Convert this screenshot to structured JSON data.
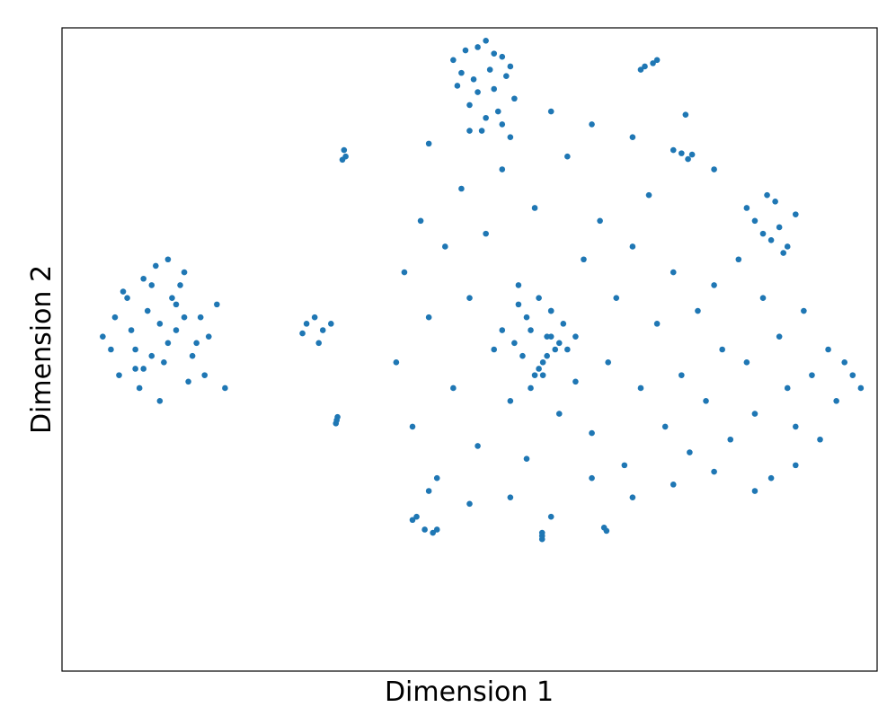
{
  "chart_data": {
    "type": "scatter",
    "x_label": "Dimension 1",
    "y_label": "Dimension 2",
    "color": "#1f77b4",
    "xlim": [
      0,
      100
    ],
    "ylim": [
      0,
      100
    ],
    "x": [
      5,
      6.5,
      8,
      9,
      10,
      11,
      12,
      13,
      14,
      15,
      16,
      17,
      18,
      7,
      9.5,
      11.5,
      13.5,
      15.5,
      8.5,
      10.5,
      12.5,
      14.5,
      16.5,
      6,
      19,
      20,
      12,
      13,
      10,
      14,
      17.5,
      7.5,
      11,
      15,
      9,
      48,
      49.5,
      51,
      52,
      53,
      54,
      55,
      49,
      50.5,
      52.5,
      54.5,
      51,
      53,
      50,
      55.5,
      52,
      48.5,
      54,
      51.5,
      53.5,
      30,
      31,
      32,
      31.5,
      33,
      29.5,
      34.6,
      34.8,
      34.4,
      76,
      76.8,
      77.3,
      76.5,
      71,
      71.5,
      72.5,
      73,
      43.5,
      44.5,
      45.5,
      46,
      43,
      58.9,
      58.9,
      58.9,
      66.5,
      66.8,
      33.8,
      33.6,
      33.7,
      41,
      42,
      43,
      44,
      45,
      46,
      47,
      48,
      49,
      50,
      51,
      52,
      53,
      54,
      55,
      56,
      57,
      58,
      59,
      60,
      61,
      62,
      63,
      64,
      65,
      66,
      67,
      68,
      69,
      70,
      71,
      72,
      73,
      74,
      75,
      76,
      77,
      78,
      79,
      80,
      81,
      82,
      83,
      84,
      85,
      86,
      87,
      88,
      89,
      90,
      91,
      92,
      93,
      94,
      95,
      96,
      97,
      98,
      55.5,
      56.5,
      57.5,
      58.5,
      59.5,
      60.5,
      61.5,
      57,
      58,
      59,
      60,
      56,
      62,
      54,
      63,
      58.5,
      57.5,
      59.5,
      60,
      61,
      84,
      85,
      86,
      87,
      88,
      89,
      90,
      87.5,
      86.5,
      88.5,
      45,
      50,
      55,
      60,
      65,
      70,
      75,
      80,
      85,
      90,
      45,
      50,
      55,
      60,
      65,
      70,
      75,
      80
    ],
    "values": [
      52,
      55,
      58,
      50,
      47,
      60,
      54,
      51,
      57,
      62,
      49,
      55,
      52,
      46,
      44,
      63,
      58,
      45,
      53,
      56,
      48,
      60,
      51,
      50,
      57,
      44,
      42,
      64,
      61,
      53,
      46,
      59,
      49,
      55,
      47,
      95,
      96.5,
      97,
      98,
      96,
      95.5,
      94,
      93,
      92,
      93.5,
      92.5,
      90,
      90.5,
      88,
      89,
      86,
      91,
      85,
      84,
      87,
      54,
      55,
      53,
      51,
      54,
      52.5,
      81,
      80,
      79.5,
      80.5,
      79.6,
      80.3,
      86.5,
      93.5,
      94,
      94.5,
      95,
      24,
      22,
      21.5,
      22,
      23.5,
      21,
      20.5,
      21.5,
      22.3,
      21.8,
      39.5,
      38.5,
      39,
      48,
      62,
      38,
      70,
      55,
      30,
      66,
      44,
      75,
      58,
      35,
      68,
      50,
      78,
      42,
      60,
      33,
      72,
      46,
      56,
      40,
      80,
      52,
      64,
      37,
      70,
      48,
      58,
      32,
      66,
      44,
      74,
      54,
      38,
      62,
      46,
      34,
      56,
      42,
      60,
      50,
      36,
      64,
      48,
      40,
      58,
      30,
      52,
      44,
      38,
      56,
      46,
      36,
      50,
      42,
      48,
      46,
      44,
      51,
      49,
      53,
      47,
      52,
      50,
      54,
      55,
      46,
      48,
      52,
      57,
      50,
      53,
      45,
      58,
      44,
      49,
      56,
      51,
      72,
      70,
      68,
      67,
      69,
      66,
      71,
      73,
      74,
      65,
      28,
      26,
      27,
      24,
      30,
      27,
      29,
      31,
      28,
      32,
      82,
      84,
      83,
      87,
      85,
      83,
      81,
      78
    ]
  }
}
